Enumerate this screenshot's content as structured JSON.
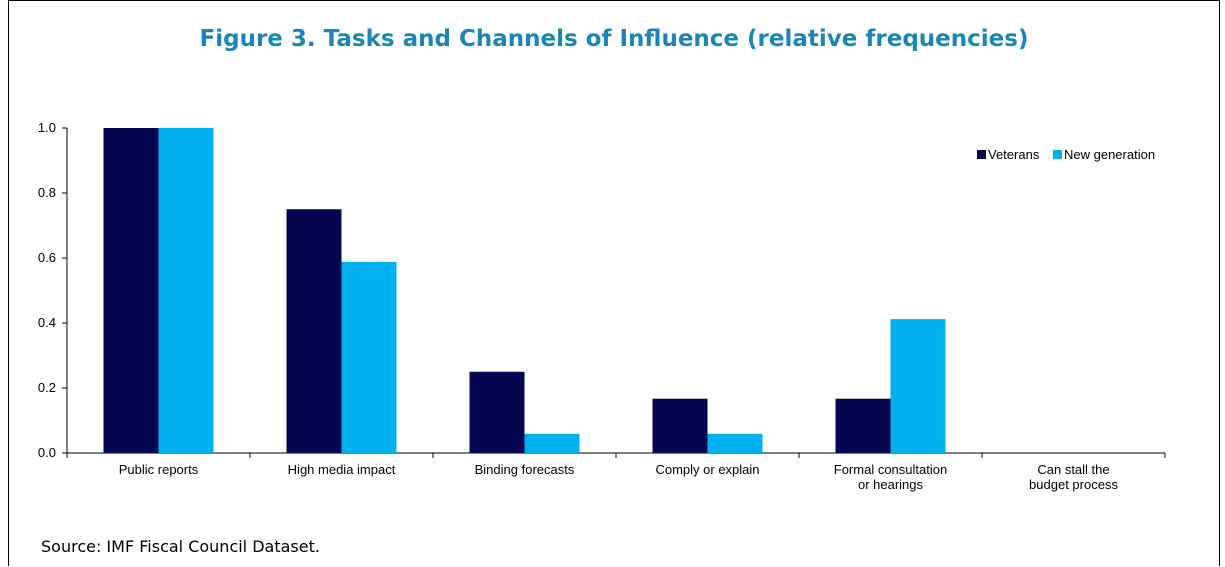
{
  "chart_data": {
    "type": "bar",
    "title": "Figure 3. Tasks and Channels of Influence (relative frequencies)",
    "categories": [
      [
        "Public reports"
      ],
      [
        "High media impact"
      ],
      [
        "Binding forecasts"
      ],
      [
        "Comply or explain"
      ],
      [
        "Formal consultation",
        "or hearings"
      ],
      [
        "Can stall the",
        "budget process"
      ]
    ],
    "series": [
      {
        "name": "Veterans",
        "color": "#04074f",
        "values": [
          1.0,
          0.75,
          0.25,
          0.167,
          0.167,
          0.0
        ]
      },
      {
        "name": "New generation",
        "color": "#00b0ef",
        "values": [
          1.0,
          0.588,
          0.059,
          0.059,
          0.412,
          0.0
        ]
      }
    ],
    "ylim": [
      0,
      1.0
    ],
    "yticks": [
      "0.0",
      "0.2",
      "0.4",
      "0.6",
      "0.8",
      "1.0"
    ],
    "xlabel": "",
    "ylabel": "",
    "legend": "top-right",
    "grid": false
  },
  "source": "Source: IMF Fiscal Council Dataset."
}
